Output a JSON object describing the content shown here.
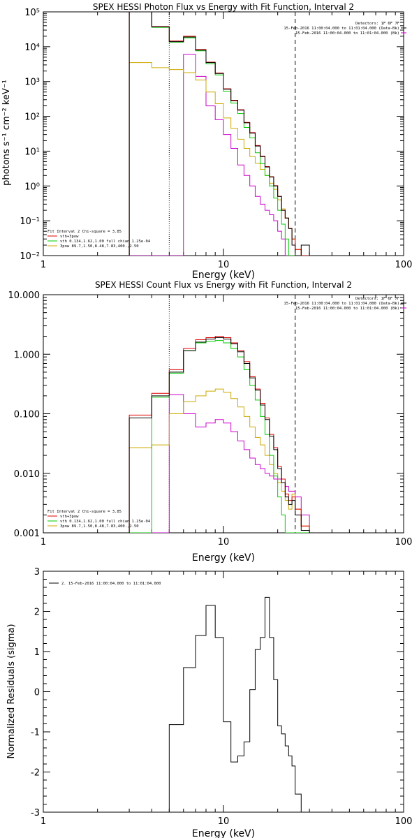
{
  "chart_data": [
    {
      "type": "line",
      "title": "SPEX HESSI Photon Flux vs Energy with Fit Function, Interval 2",
      "xlabel": "Energy (keV)",
      "ylabel": "photons s⁻¹ cm⁻² keV⁻¹",
      "xscale": "log",
      "yscale": "log",
      "xlim": [
        1,
        100
      ],
      "ylim": [
        0.01,
        100000
      ],
      "xticks": [
        "1",
        "10",
        "100"
      ],
      "yticks": [
        "10⁻²",
        "10⁻¹",
        "10⁰",
        "10¹",
        "10²",
        "10³",
        "10⁴",
        "10⁵"
      ],
      "vlines": [
        {
          "x": 5,
          "style": "dotted"
        },
        {
          "x": 25,
          "style": "dashed"
        }
      ],
      "header": [
        {
          "text": "Detectors: 1F 6F 7F",
          "swatch": null
        },
        {
          "text": "15-Feb-2016 11:00:04.000 to 11:01:04.000 (Data-Bk)",
          "swatch": "#000000"
        },
        {
          "text": "15-Feb-2016 11:00:04.000 to 11:01:04.000 (Bk)",
          "swatch": "#cc00cc"
        }
      ],
      "legend_title": "Fit Interval 2   Chi-square = 3.85",
      "legend": [
        {
          "label": "vth+3pow",
          "color": "#dd0000"
        },
        {
          "label": "vth 0.134,1.62,1.00  full chian 1.25e-04",
          "color": "#00cc00"
        },
        {
          "label": "3pow 89.7,1.50,8.48,7.83,400.,2.50",
          "color": "#ccaa00"
        }
      ],
      "edges": [
        3,
        4,
        5,
        6,
        7,
        8,
        9,
        10,
        11,
        12,
        13,
        14,
        15,
        16,
        17,
        18,
        19,
        20,
        21,
        22,
        23,
        24,
        25,
        27,
        30
      ],
      "series": [
        {
          "name": "Data-Bk",
          "color": "#000000",
          "values": [
            150000,
            37000,
            14000,
            19000,
            8000,
            3500,
            1700,
            600,
            280,
            150,
            65,
            33,
            14,
            7,
            3.5,
            1.8,
            1.0,
            0.5,
            0.2,
            0.12,
            0.06,
            0.02,
            0.01,
            0.02
          ]
        },
        {
          "name": "vth+3pow",
          "color": "#dd0000",
          "values": [
            150000,
            38000,
            14500,
            20000,
            8300,
            3600,
            1750,
            620,
            290,
            155,
            67,
            34,
            14.5,
            7.2,
            3.6,
            1.85,
            1.02,
            0.5,
            0.2,
            0.12,
            0.06,
            0.03,
            0.015,
            0.01
          ]
        },
        {
          "name": "vth",
          "color": "#00cc00",
          "values": [
            150000,
            36000,
            13500,
            18000,
            7600,
            3200,
            1550,
            520,
            240,
            120,
            48,
            24,
            9,
            4.4,
            2,
            1.0,
            0.45,
            0.2,
            0.08,
            0.03,
            0.01,
            0.01,
            0.01,
            0.01
          ]
        },
        {
          "name": "3pow",
          "color": "#ccaa00",
          "values": [
            3500,
            2500,
            2200,
            1800,
            1100,
            500,
            230,
            90,
            45,
            22,
            12,
            7,
            4.5,
            3,
            2,
            1.2,
            0.8,
            0.4,
            0.22,
            0.12,
            0.06,
            0.03,
            0.015,
            0.01
          ]
        },
        {
          "name": "Bk",
          "color": "#cc00cc",
          "values": [
            0,
            0,
            0,
            6000,
            1400,
            200,
            80,
            30,
            12,
            4,
            2,
            1,
            0.5,
            0.3,
            0.2,
            0.15,
            0.1,
            0.05,
            0.03,
            0.01,
            0.01,
            0.01,
            0.01,
            0.01
          ]
        }
      ]
    },
    {
      "type": "line",
      "title": "SPEX HESSI Count Flux vs Energy with Fit Function, Interval 2",
      "xlabel": "Energy (keV)",
      "ylabel": "",
      "xscale": "log",
      "yscale": "log",
      "xlim": [
        1,
        100
      ],
      "ylim": [
        0.001,
        10
      ],
      "xticks": [
        "1",
        "10",
        "100"
      ],
      "yticks": [
        "0.001",
        "0.010",
        "0.100",
        "1.000",
        "10.000"
      ],
      "vlines": [
        {
          "x": 5,
          "style": "dotted"
        },
        {
          "x": 25,
          "style": "dashed"
        }
      ],
      "header": [
        {
          "text": "Detectors: 1F 6F 7F",
          "swatch": null
        },
        {
          "text": "15-Feb-2016 11:00:04.000 to 11:01:04.000 (Data-Bk)",
          "swatch": "#000000"
        },
        {
          "text": "15-Feb-2016 11:00:04.000 to 11:01:04.000 (Bk)",
          "swatch": "#cc00cc"
        }
      ],
      "legend_title": "Fit Interval 2   Chi-square = 3.85",
      "legend": [
        {
          "label": "vth+3pow",
          "color": "#dd0000"
        },
        {
          "label": "vth 0.134,1.62,1.00  full chian 1.25e-04",
          "color": "#00cc00"
        },
        {
          "label": "3pow 89.7,1.50,8.48,7.83,400.,2.50",
          "color": "#ccaa00"
        }
      ],
      "edges": [
        3,
        4,
        5,
        6,
        7,
        8,
        9,
        10,
        11,
        12,
        13,
        14,
        15,
        16,
        17,
        18,
        19,
        20,
        21,
        22,
        23,
        24,
        25,
        27,
        30,
        33
      ],
      "series": [
        {
          "name": "Data-Bk",
          "color": "#000000",
          "values": [
            0.085,
            0.2,
            0.5,
            1.15,
            1.6,
            1.8,
            1.9,
            1.8,
            1.5,
            1.1,
            0.7,
            0.4,
            0.25,
            0.14,
            0.08,
            0.042,
            0.025,
            0.012,
            0.007,
            0.004,
            0.003,
            0.0035,
            0.002,
            0.0011,
            0.001
          ]
        },
        {
          "name": "vth+3pow",
          "color": "#dd0000",
          "values": [
            0.095,
            0.22,
            0.55,
            1.25,
            1.75,
            1.9,
            2.0,
            1.9,
            1.55,
            1.15,
            0.75,
            0.42,
            0.26,
            0.15,
            0.085,
            0.045,
            0.027,
            0.013,
            0.008,
            0.0045,
            0.0035,
            0.004,
            0.0025,
            0.0013,
            0.001
          ]
        },
        {
          "name": "vth",
          "color": "#00cc00",
          "values": [
            0.001,
            0.19,
            0.48,
            1.15,
            1.55,
            1.65,
            1.7,
            1.55,
            1.25,
            0.9,
            0.55,
            0.3,
            0.17,
            0.09,
            0.045,
            0.02,
            0.009,
            0.004,
            0.002,
            0.001,
            0.001,
            0.001,
            0.001,
            0.001,
            0.001
          ]
        },
        {
          "name": "3pow",
          "color": "#ccaa00",
          "values": [
            0.027,
            0.03,
            0.1,
            0.16,
            0.2,
            0.24,
            0.26,
            0.23,
            0.18,
            0.13,
            0.09,
            0.06,
            0.04,
            0.03,
            0.02,
            0.014,
            0.01,
            0.007,
            0.005,
            0.0035,
            0.0025,
            0.0045,
            0.0025,
            0.0013,
            0.001
          ]
        },
        {
          "name": "Bk",
          "color": "#cc00cc",
          "values": [
            0.001,
            0.001,
            0.21,
            0.1,
            0.06,
            0.07,
            0.08,
            0.07,
            0.05,
            0.035,
            0.025,
            0.018,
            0.014,
            0.012,
            0.01,
            0.009,
            0.008,
            0.008,
            0.007,
            0.006,
            0.005,
            0.005,
            0.004,
            0.002,
            0.001
          ]
        }
      ]
    },
    {
      "type": "line",
      "title": "",
      "xlabel": "Energy (keV)",
      "ylabel": "Normalized Residuals (sigma)",
      "xscale": "log",
      "yscale": "linear",
      "xlim": [
        1,
        100
      ],
      "ylim": [
        -3,
        3
      ],
      "xticks": [
        "1",
        "10",
        "100"
      ],
      "yticks": [
        "-3",
        "-2",
        "-1",
        "0",
        "1",
        "2",
        "3"
      ],
      "legend": [
        {
          "label": "2. 15-Feb-2016 11:00:04.000 to 11:01:04.000",
          "color": "#000000"
        }
      ],
      "edges": [
        5,
        6,
        7,
        8,
        9,
        10,
        11,
        12,
        13,
        14,
        15,
        16,
        17,
        18,
        19,
        20,
        21,
        22,
        23,
        24,
        25,
        27
      ],
      "series": [
        {
          "name": "residuals",
          "color": "#000000",
          "values": [
            -0.82,
            0.6,
            1.4,
            2.15,
            1.35,
            -0.75,
            -1.75,
            -1.6,
            -1.25,
            0.05,
            1.05,
            1.35,
            2.35,
            1.35,
            0.3,
            -0.85,
            -1.05,
            -1.35,
            -1.6,
            -1.85,
            -2.55
          ]
        }
      ]
    }
  ]
}
